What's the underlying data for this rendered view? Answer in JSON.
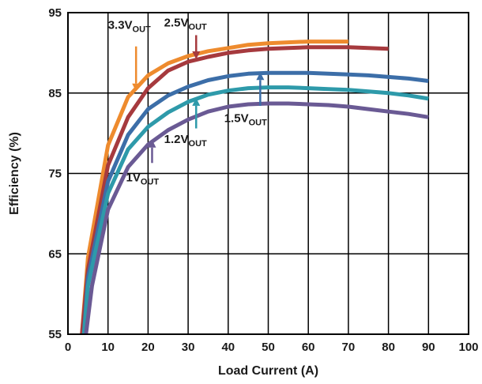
{
  "chart_data": {
    "type": "line",
    "title": "",
    "xlabel": "Load Current (A)",
    "ylabel": "Efficiency (%)",
    "xlim": [
      0,
      100
    ],
    "ylim": [
      55,
      95
    ],
    "x_ticks": [
      "0",
      "10",
      "20",
      "30",
      "40",
      "50",
      "60",
      "70",
      "80",
      "90",
      "100"
    ],
    "y_ticks": [
      "55",
      "65",
      "75",
      "85",
      "95"
    ],
    "grid": true,
    "series": [
      {
        "name": "3.3VOUT",
        "color": "#EE8B2E",
        "x": [
          3.5,
          5,
          10,
          15,
          20,
          25,
          30,
          35,
          40,
          45,
          50,
          55,
          60,
          65,
          70
        ],
        "y": [
          55,
          64.5,
          78.5,
          84.5,
          87.2,
          88.7,
          89.6,
          90.2,
          90.6,
          91.0,
          91.2,
          91.3,
          91.4,
          91.4,
          91.4
        ]
      },
      {
        "name": "2.5VOUT",
        "color": "#A63A3E",
        "x": [
          3.5,
          5,
          10,
          15,
          20,
          25,
          30,
          35,
          40,
          45,
          50,
          55,
          60,
          65,
          70,
          75,
          80
        ],
        "y": [
          55,
          63,
          76,
          82,
          85.6,
          87.8,
          88.9,
          89.5,
          90.0,
          90.3,
          90.5,
          90.6,
          90.7,
          90.7,
          90.7,
          90.6,
          90.5
        ]
      },
      {
        "name": "1.5VOUT",
        "color": "#3C6EA8",
        "x": [
          4,
          5,
          10,
          15,
          20,
          25,
          30,
          35,
          40,
          45,
          50,
          55,
          60,
          65,
          70,
          75,
          80,
          85,
          90
        ],
        "y": [
          55,
          62,
          74,
          79.8,
          83,
          84.7,
          85.8,
          86.6,
          87.1,
          87.4,
          87.5,
          87.5,
          87.5,
          87.4,
          87.3,
          87.2,
          87.0,
          86.8,
          86.5
        ]
      },
      {
        "name": "1.2VOUT",
        "color": "#2E9AAA",
        "x": [
          4,
          5,
          10,
          15,
          20,
          25,
          30,
          35,
          40,
          45,
          50,
          55,
          60,
          65,
          70,
          75,
          80,
          85,
          90
        ],
        "y": [
          55,
          61,
          72.5,
          78,
          80.8,
          82.6,
          83.9,
          84.8,
          85.3,
          85.6,
          85.7,
          85.7,
          85.6,
          85.5,
          85.4,
          85.2,
          85.0,
          84.7,
          84.3
        ]
      },
      {
        "name": "1VOUT",
        "color": "#6A5A94",
        "x": [
          4.5,
          6,
          10,
          15,
          20,
          25,
          30,
          35,
          40,
          45,
          50,
          55,
          60,
          65,
          70,
          75,
          80,
          85,
          90
        ],
        "y": [
          55,
          61,
          70.5,
          75.8,
          78.6,
          80.4,
          81.7,
          82.7,
          83.3,
          83.6,
          83.7,
          83.7,
          83.6,
          83.5,
          83.3,
          83.0,
          82.7,
          82.4,
          82.0
        ]
      }
    ],
    "annotations": [
      {
        "main": "3.3V",
        "sub": "OUT",
        "series": 0,
        "arrow_x": 17,
        "arrow_from_y": 90.8,
        "arrow_to_y": 85.2
      },
      {
        "main": "2.5V",
        "sub": "OUT",
        "series": 1,
        "arrow_x": 32,
        "arrow_from_y": 92.2,
        "arrow_to_y": 89.2
      },
      {
        "main": "1.5V",
        "sub": "OUT",
        "series": 2,
        "arrow_x": 48,
        "arrow_from_y": 83.4,
        "arrow_to_y": 87.6
      },
      {
        "main": "1.2V",
        "sub": "OUT",
        "series": 3,
        "arrow_x": 32,
        "arrow_from_y": 80.6,
        "arrow_to_y": 84.4
      },
      {
        "main": "1V",
        "sub": "OUT",
        "series": 4,
        "arrow_x": 21,
        "arrow_from_y": 76.3,
        "arrow_to_y": 79.2
      }
    ]
  }
}
